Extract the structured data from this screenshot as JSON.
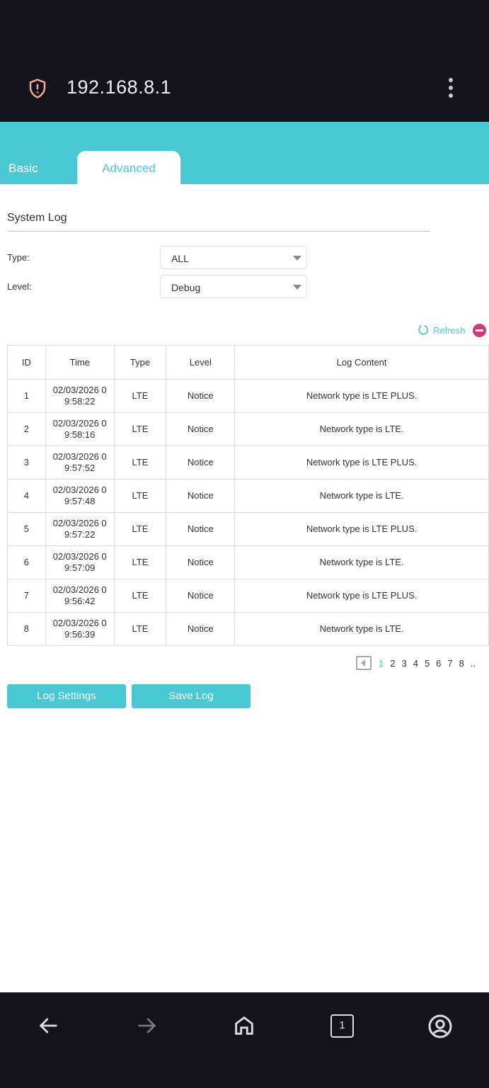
{
  "browser": {
    "url": "192.168.8.1",
    "security_icon": "shield-alert-icon",
    "menu_icon": "more-vert-icon"
  },
  "tabs": [
    {
      "label": "Basic",
      "active": false
    },
    {
      "label": "Advanced",
      "active": true
    }
  ],
  "colors": {
    "accent": "#4ac9d4",
    "topbar": "#14131b",
    "danger": "#d1397a"
  },
  "page": {
    "title": "System Log"
  },
  "filters": {
    "type_label": "Type:",
    "type_value": "ALL",
    "level_label": "Level:",
    "level_value": "Debug"
  },
  "actions": {
    "refresh": "Refresh"
  },
  "table": {
    "headers": [
      "ID",
      "Time",
      "Type",
      "Level",
      "Log Content"
    ],
    "rows": [
      [
        "1",
        "02/03/2026 09:58:22",
        "LTE",
        "Notice",
        "Network type is LTE PLUS."
      ],
      [
        "2",
        "02/03/2026 09:58:16",
        "LTE",
        "Notice",
        "Network type is LTE."
      ],
      [
        "3",
        "02/03/2026 09:57:52",
        "LTE",
        "Notice",
        "Network type is LTE PLUS."
      ],
      [
        "4",
        "02/03/2026 09:57:48",
        "LTE",
        "Notice",
        "Network type is LTE."
      ],
      [
        "5",
        "02/03/2026 09:57:22",
        "LTE",
        "Notice",
        "Network type is LTE PLUS."
      ],
      [
        "6",
        "02/03/2026 09:57:09",
        "LTE",
        "Notice",
        "Network type is LTE."
      ],
      [
        "7",
        "02/03/2026 09:56:42",
        "LTE",
        "Notice",
        "Network type is LTE PLUS."
      ],
      [
        "8",
        "02/03/2026 09:56:39",
        "LTE",
        "Notice",
        "Network type is LTE."
      ]
    ]
  },
  "pagination": {
    "pages": [
      "1",
      "2",
      "3",
      "4",
      "5",
      "6",
      "7",
      "8"
    ],
    "current": "1",
    "more": ".."
  },
  "buttons": {
    "log_settings": "Log Settings",
    "save_log": "Save Log"
  },
  "bottom_nav": {
    "tab_count": "1"
  }
}
